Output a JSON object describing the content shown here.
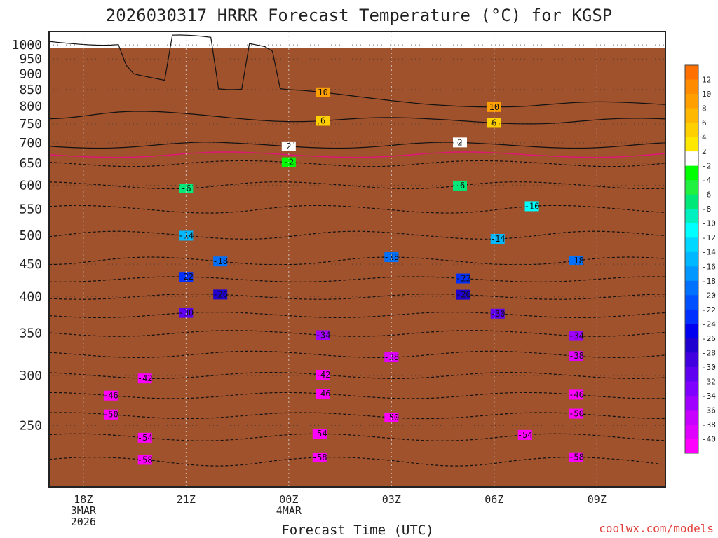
{
  "chart_data": {
    "type": "time-height contour",
    "title": "2026030317 HRRR Forecast Temperature (°C) for KGSP",
    "xlabel": "Forecast Time (UTC)",
    "ylabel": "",
    "credit": "coolwx.com/models",
    "x_range_hours": [
      -1,
      17
    ],
    "x_ticks": [
      {
        "hour": 0,
        "lines": [
          "18Z",
          "3MAR",
          "2026"
        ]
      },
      {
        "hour": 3,
        "lines": [
          "21Z"
        ]
      },
      {
        "hour": 6,
        "lines": [
          "00Z",
          "4MAR"
        ]
      },
      {
        "hour": 9,
        "lines": [
          "03Z"
        ]
      },
      {
        "hour": 12,
        "lines": [
          "06Z"
        ]
      },
      {
        "hour": 15,
        "lines": [
          "09Z"
        ]
      }
    ],
    "y_range_hpa": [
      1050,
      200
    ],
    "y_ticks": [
      250,
      300,
      350,
      400,
      450,
      500,
      550,
      600,
      650,
      700,
      750,
      800,
      850,
      900,
      950,
      1000
    ],
    "surface_pressure_hpa": 990,
    "colorbar": {
      "labels": [
        12,
        10,
        8,
        6,
        4,
        2,
        -2,
        -4,
        -6,
        -8,
        -10,
        -12,
        -14,
        -16,
        -18,
        -20,
        -22,
        -24,
        -26,
        -28,
        -30,
        -32,
        -34,
        -36,
        -38,
        -40
      ],
      "colors": [
        "#ff7000",
        "#ff8c00",
        "#ffa000",
        "#ffb800",
        "#ffd000",
        "#ffe800",
        "#ffffff",
        "#00ff00",
        "#20f040",
        "#00e878",
        "#00f0c0",
        "#00ffff",
        "#00d8ff",
        "#00b8ff",
        "#0098ff",
        "#0070ff",
        "#0050ff",
        "#0030ff",
        "#0000f0",
        "#2000d0",
        "#4000e0",
        "#6000f0",
        "#8000ff",
        "#a000ff",
        "#c800ff",
        "#e000ff",
        "#ff00ff"
      ]
    },
    "isotherm_labels": [
      {
        "t": -58,
        "hour": 1.8
      },
      {
        "t": -58,
        "hour": 6.9
      },
      {
        "t": -58,
        "hour": 14.4
      },
      {
        "t": -54,
        "hour": 1.8
      },
      {
        "t": -54,
        "hour": 6.9
      },
      {
        "t": -54,
        "hour": 12.9
      },
      {
        "t": -50,
        "hour": 0.8
      },
      {
        "t": -50,
        "hour": 9.0
      },
      {
        "t": -50,
        "hour": 14.4
      },
      {
        "t": -46,
        "hour": 0.8
      },
      {
        "t": -46,
        "hour": 7.0
      },
      {
        "t": -46,
        "hour": 14.4
      },
      {
        "t": -42,
        "hour": 1.8
      },
      {
        "t": -42,
        "hour": 7.0
      },
      {
        "t": -38,
        "hour": 9.0
      },
      {
        "t": -38,
        "hour": 14.4
      },
      {
        "t": -34,
        "hour": 7.0
      },
      {
        "t": -34,
        "hour": 14.4
      },
      {
        "t": -30,
        "hour": 3.0
      },
      {
        "t": -30,
        "hour": 12.1
      },
      {
        "t": -26,
        "hour": 4.0
      },
      {
        "t": -26,
        "hour": 11.1
      },
      {
        "t": -22,
        "hour": 3.0
      },
      {
        "t": -22,
        "hour": 11.1
      },
      {
        "t": -18,
        "hour": 4.0
      },
      {
        "t": -18,
        "hour": 9.0
      },
      {
        "t": -18,
        "hour": 14.4
      },
      {
        "t": -14,
        "hour": 3.0
      },
      {
        "t": -14,
        "hour": 12.1
      },
      {
        "t": -10,
        "hour": 13.1
      },
      {
        "t": -6,
        "hour": 3.0
      },
      {
        "t": -6,
        "hour": 11.0
      },
      {
        "t": -2,
        "hour": 6.0
      },
      {
        "t": 2,
        "hour": 6.0
      },
      {
        "t": 2,
        "hour": 11.0
      },
      {
        "t": 6,
        "hour": 7.0
      },
      {
        "t": 6,
        "hour": 12.0
      },
      {
        "t": 10,
        "hour": 12.0
      },
      {
        "t": 10,
        "hour": 7.0
      }
    ]
  }
}
